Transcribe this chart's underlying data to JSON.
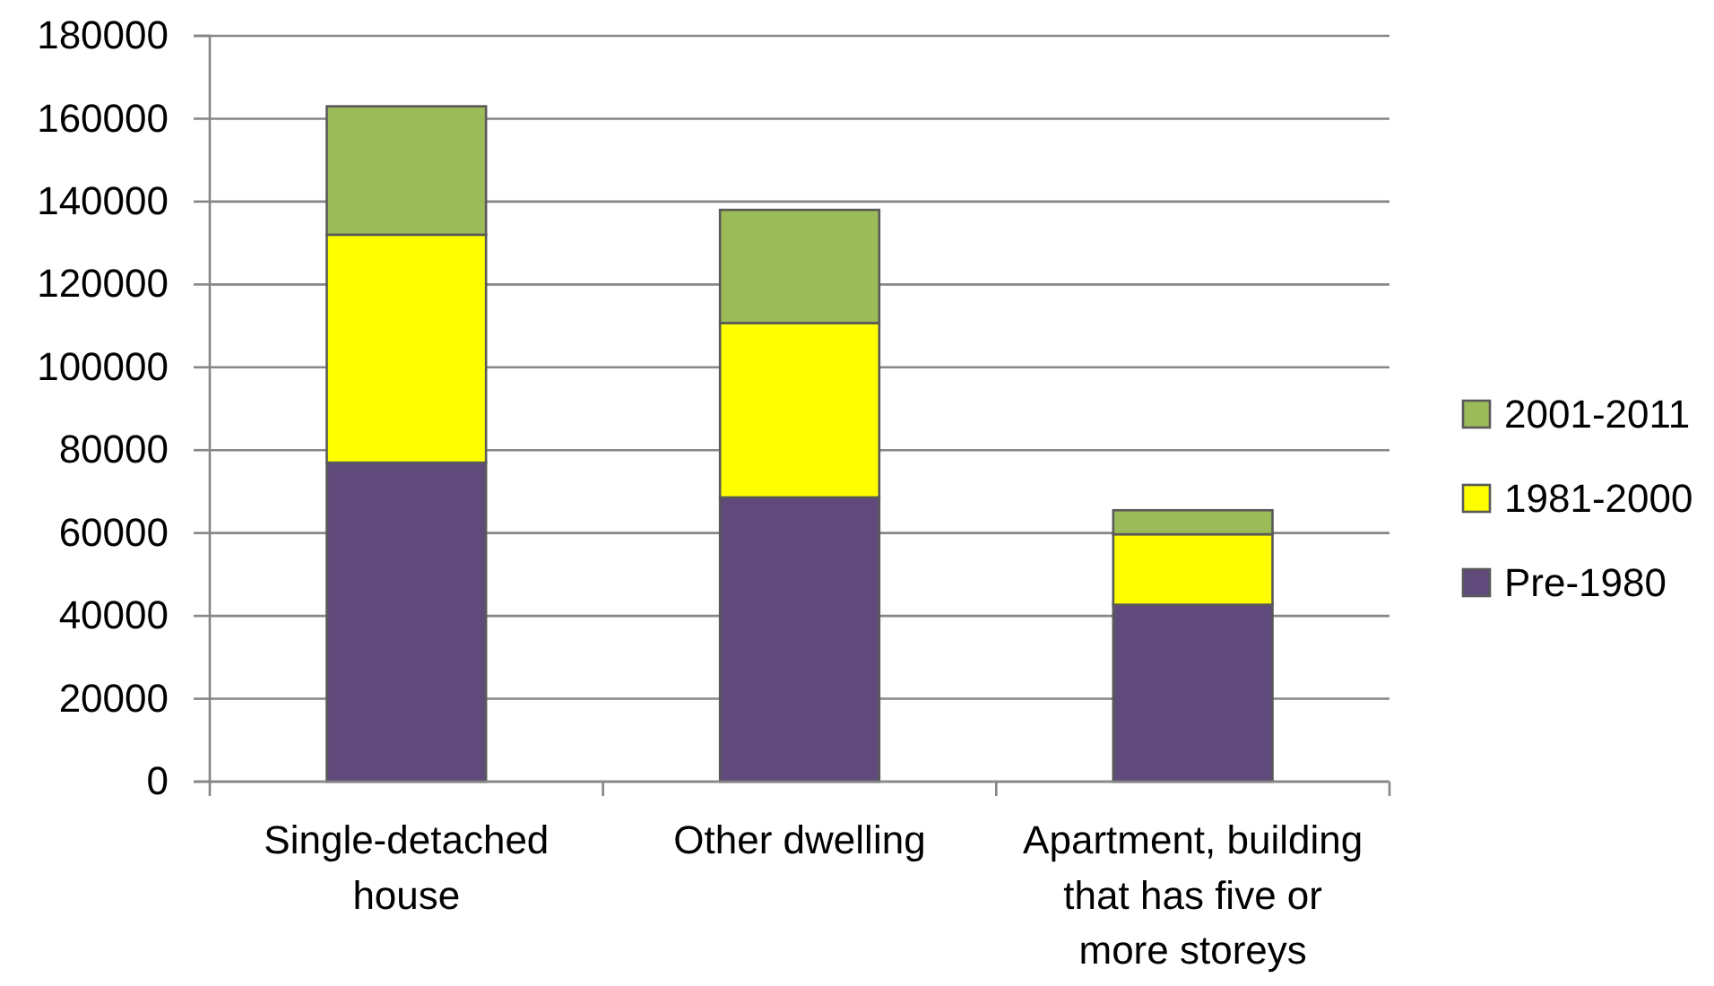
{
  "chart_data": {
    "type": "bar",
    "stacked": true,
    "categories": [
      "Single-detached house",
      "Other dwelling",
      "Apartment, building that has five or more storeys"
    ],
    "series": [
      {
        "name": "Pre-1980",
        "color": "#604a7b",
        "values": [
          77000,
          68600,
          42700
        ]
      },
      {
        "name": "1981-2000",
        "color": "#ffff00",
        "values": [
          55000,
          42100,
          17000
        ]
      },
      {
        "name": "2001-2011",
        "color": "#9bbb59",
        "values": [
          31000,
          27300,
          5800
        ]
      }
    ],
    "ylim": [
      0,
      180000
    ],
    "yticks": [
      0,
      20000,
      40000,
      60000,
      80000,
      100000,
      120000,
      140000,
      160000,
      180000
    ],
    "grid": "y",
    "legend": "right"
  }
}
